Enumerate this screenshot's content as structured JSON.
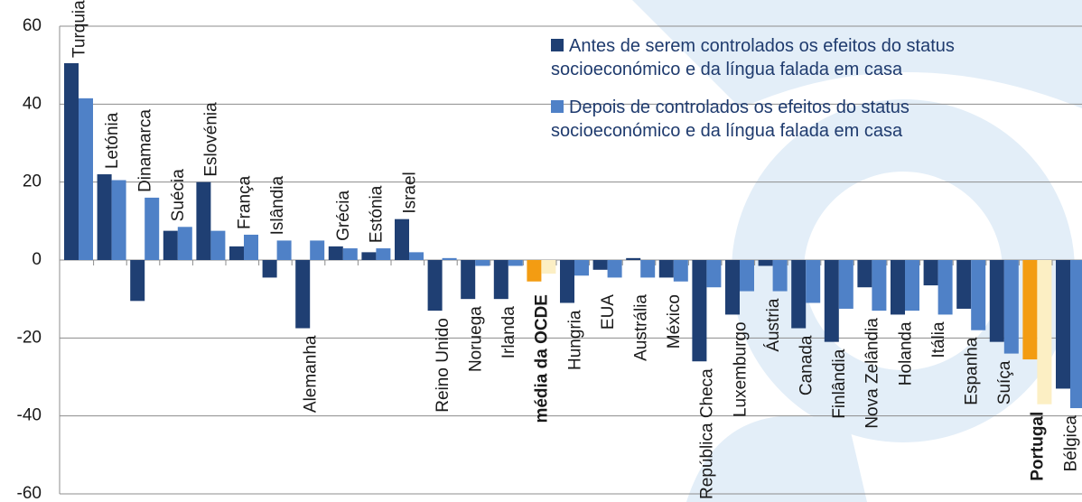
{
  "chart_data": {
    "type": "bar",
    "categories": [
      "Turquia",
      "Letónia",
      "Dinamarca",
      "Suécia",
      "Eslovénia",
      "França",
      "Islândia",
      "Alemanha",
      "Grécia",
      "Estónia",
      "Israel",
      "Reino Unido",
      "Noruega",
      "Irlanda",
      "média da OCDE",
      "Hungria",
      "EUA",
      "Austrália",
      "México",
      "República Checa",
      "Luxemburgo",
      "Áustria",
      "Canada",
      "Finlândia",
      "Nova Zelândia",
      "Holanda",
      "Itália",
      "Espanha",
      "Suíça",
      "Portugal",
      "Bélgica"
    ],
    "series": [
      {
        "name": "Antes de serem controlados os efeitos  do status socioeconómico e da língua falada em casa",
        "color": "#1f3f73",
        "values": [
          50.5,
          22,
          -10.5,
          7.5,
          20,
          3.5,
          -4.5,
          -17.5,
          3.5,
          2,
          10.5,
          -13,
          -10,
          -10,
          -5.5,
          -11,
          -2.5,
          0.5,
          -4.5,
          -26,
          -14,
          -1.5,
          -17.5,
          -21,
          -7,
          -14,
          -6.5,
          -12.5,
          -21,
          -25.5,
          -33
        ],
        "colors": [
          "#1f3f73",
          "#1f3f73",
          "#1f3f73",
          "#1f3f73",
          "#1f3f73",
          "#1f3f73",
          "#1f3f73",
          "#1f3f73",
          "#1f3f73",
          "#1f3f73",
          "#1f3f73",
          "#1f3f73",
          "#1f3f73",
          "#1f3f73",
          "#f39c12",
          "#1f3f73",
          "#1f3f73",
          "#1f3f73",
          "#1f3f73",
          "#1f3f73",
          "#1f3f73",
          "#1f3f73",
          "#1f3f73",
          "#1f3f73",
          "#1f3f73",
          "#1f3f73",
          "#1f3f73",
          "#1f3f73",
          "#1f3f73",
          "#f39c12",
          "#1f3f73"
        ]
      },
      {
        "name": "Depois de controlados os efeitos do status socioeconómico e da língua falada em casa",
        "color": "#4f81c7",
        "values": [
          41.5,
          20.5,
          16,
          8.5,
          7.5,
          6.5,
          5,
          5,
          3,
          3,
          2,
          0.5,
          -1.5,
          -1.5,
          -3.5,
          -4,
          -4.5,
          -4.5,
          -5.5,
          -7,
          -8,
          -8,
          -11,
          -12.5,
          -13,
          -13,
          -14,
          -18,
          -24,
          -37,
          -38
        ],
        "colors": [
          "#4f81c7",
          "#4f81c7",
          "#4f81c7",
          "#4f81c7",
          "#4f81c7",
          "#4f81c7",
          "#4f81c7",
          "#4f81c7",
          "#4f81c7",
          "#4f81c7",
          "#4f81c7",
          "#4f81c7",
          "#4f81c7",
          "#4f81c7",
          "#fcefc4",
          "#4f81c7",
          "#4f81c7",
          "#4f81c7",
          "#4f81c7",
          "#4f81c7",
          "#4f81c7",
          "#4f81c7",
          "#4f81c7",
          "#4f81c7",
          "#4f81c7",
          "#4f81c7",
          "#4f81c7",
          "#4f81c7",
          "#4f81c7",
          "#fcefc4",
          "#4f81c7"
        ]
      }
    ],
    "ylim": [
      -60,
      60
    ],
    "yticks": [
      -60,
      -40,
      -20,
      0,
      20,
      40,
      60
    ],
    "grid": true,
    "legend": "top-right"
  }
}
